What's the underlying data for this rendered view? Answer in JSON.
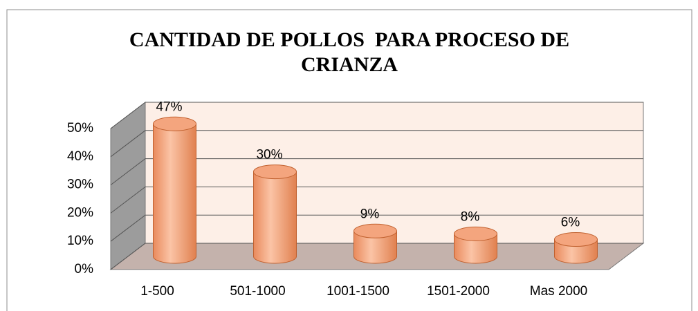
{
  "chart_data": {
    "type": "bar",
    "title": "CANTIDAD DE POLLOS  PARA PROCESO DE CRIANZA",
    "categories": [
      "1-500",
      "501-1000",
      "1001-1500",
      "1501-2000",
      "Mas 2000"
    ],
    "values": [
      47,
      30,
      9,
      8,
      6
    ],
    "value_labels": [
      "47%",
      "30%",
      "9%",
      "8%",
      "6%"
    ],
    "color": "#f4a57e",
    "ylim": [
      0,
      50
    ],
    "yticks": [
      {
        "value": 0,
        "label": "0%"
      },
      {
        "value": 10,
        "label": "10%"
      },
      {
        "value": 20,
        "label": "20%"
      },
      {
        "value": 30,
        "label": "30%"
      },
      {
        "value": 40,
        "label": "40%"
      },
      {
        "value": 50,
        "label": "50%"
      }
    ],
    "grid": true
  }
}
